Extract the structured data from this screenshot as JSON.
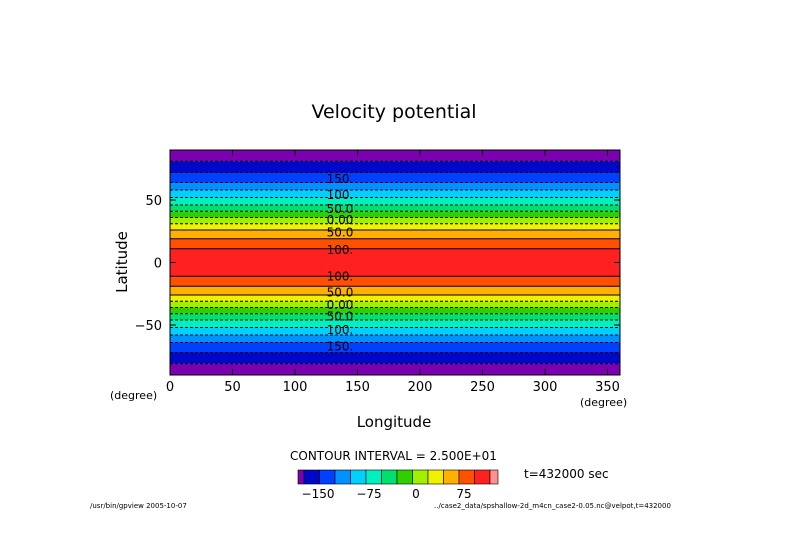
{
  "chart_data": {
    "type": "contour",
    "title": "Velocity potential",
    "xlabel": "Longitude",
    "ylabel": "Latitude",
    "x_unit": "(degree)",
    "y_unit": "(degree)",
    "xlim": [
      0,
      360
    ],
    "ylim": [
      -90,
      90
    ],
    "x_ticks": [
      "0",
      "50",
      "100",
      "150",
      "200",
      "250",
      "300",
      "350"
    ],
    "y_ticks": [
      "50",
      "0",
      "−50"
    ],
    "band_edges_lat": [
      90,
      81,
      72,
      64,
      58,
      52,
      46,
      41,
      36,
      31,
      26,
      19,
      11,
      -11,
      -19,
      -26,
      -31,
      -36,
      -41,
      -46,
      -52,
      -58,
      -64,
      -72,
      -81,
      -90
    ],
    "band_level_index": [
      0,
      1,
      2,
      3,
      4,
      5,
      6,
      7,
      8,
      9,
      10,
      11,
      12,
      11,
      10,
      9,
      8,
      7,
      6,
      5,
      4,
      3,
      2,
      1,
      0
    ],
    "contour_labels": [
      {
        "text": "150.",
        "lat": 67
      },
      {
        "text": "100.",
        "lat": 54
      },
      {
        "text": "50.0",
        "lat": 43
      },
      {
        "text": "0.00",
        "lat": 34
      },
      {
        "text": "50.0",
        "lat": 24
      },
      {
        "text": "100.",
        "lat": 10
      },
      {
        "text": "100.",
        "lat": -11
      },
      {
        "text": "50.0",
        "lat": -24
      },
      {
        "text": "0.00",
        "lat": -34
      },
      {
        "text": "50.0",
        "lat": -43
      },
      {
        "text": "100.",
        "lat": -54
      },
      {
        "text": "150.",
        "lat": -67
      }
    ],
    "colorbar": {
      "colors": [
        "#7a00b0",
        "#0008c8",
        "#0040ff",
        "#0090ff",
        "#00d0ff",
        "#00f0c0",
        "#00e070",
        "#30d000",
        "#a0f000",
        "#f0f000",
        "#ffb000",
        "#ff5000",
        "#ff2020",
        "#ff9090"
      ],
      "tick_labels": [
        "−150",
        "−75",
        "0",
        "75"
      ]
    },
    "contour_interval": "CONTOUR INTERVAL = 2.500E+01",
    "time_label": "t=432000 sec",
    "footer_left": "/usr/bin/gpview 2005-10-07",
    "footer_right": "../case2_data/spshallow-2d_m4cn_case2-0.05.nc@velpot,t=432000"
  }
}
